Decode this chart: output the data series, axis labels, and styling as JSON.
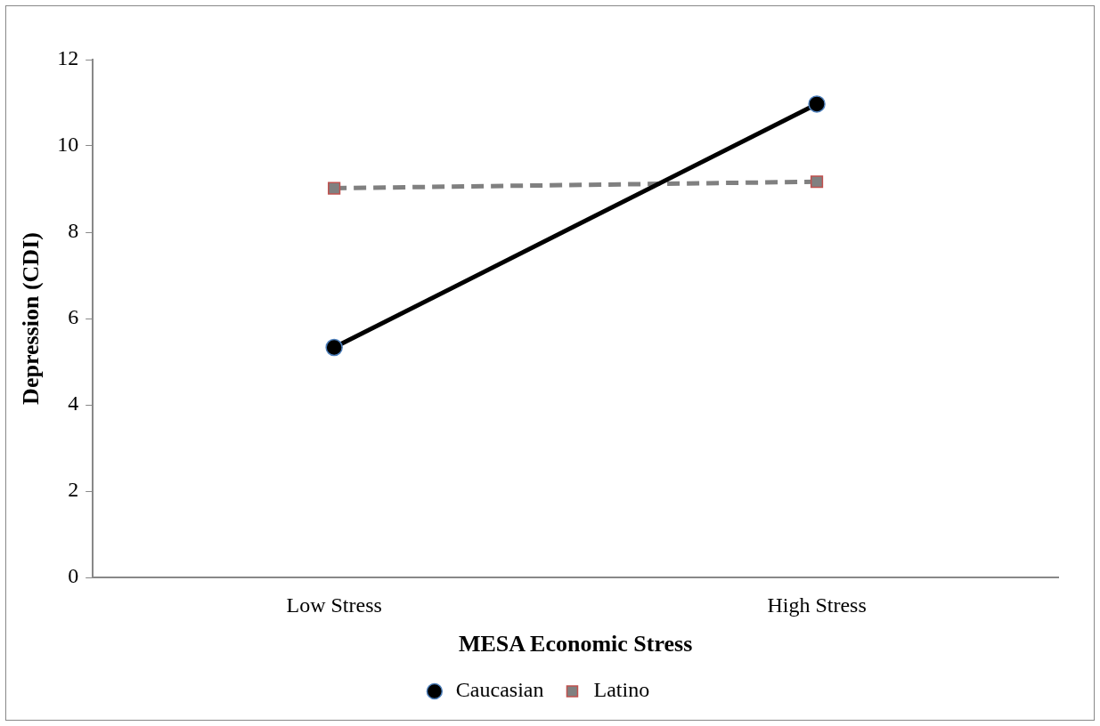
{
  "chart_data": {
    "type": "line",
    "xlabel": "MESA Economic Stress",
    "ylabel": "Depression (CDI)",
    "categories": [
      "Low Stress",
      "High Stress"
    ],
    "series": [
      {
        "name": "Caucasian",
        "color": "#000000",
        "values": [
          5.33,
          10.97
        ],
        "marker": "circle",
        "line_style": "solid"
      },
      {
        "name": "Latino",
        "color": "#808080",
        "values": [
          9.02,
          9.17
        ],
        "marker": "square",
        "line_style": "dashed"
      }
    ],
    "ylim": [
      0,
      12
    ],
    "yticks": [
      0,
      2,
      4,
      6,
      8,
      10,
      12
    ],
    "grid": false,
    "legend": "bottom"
  }
}
